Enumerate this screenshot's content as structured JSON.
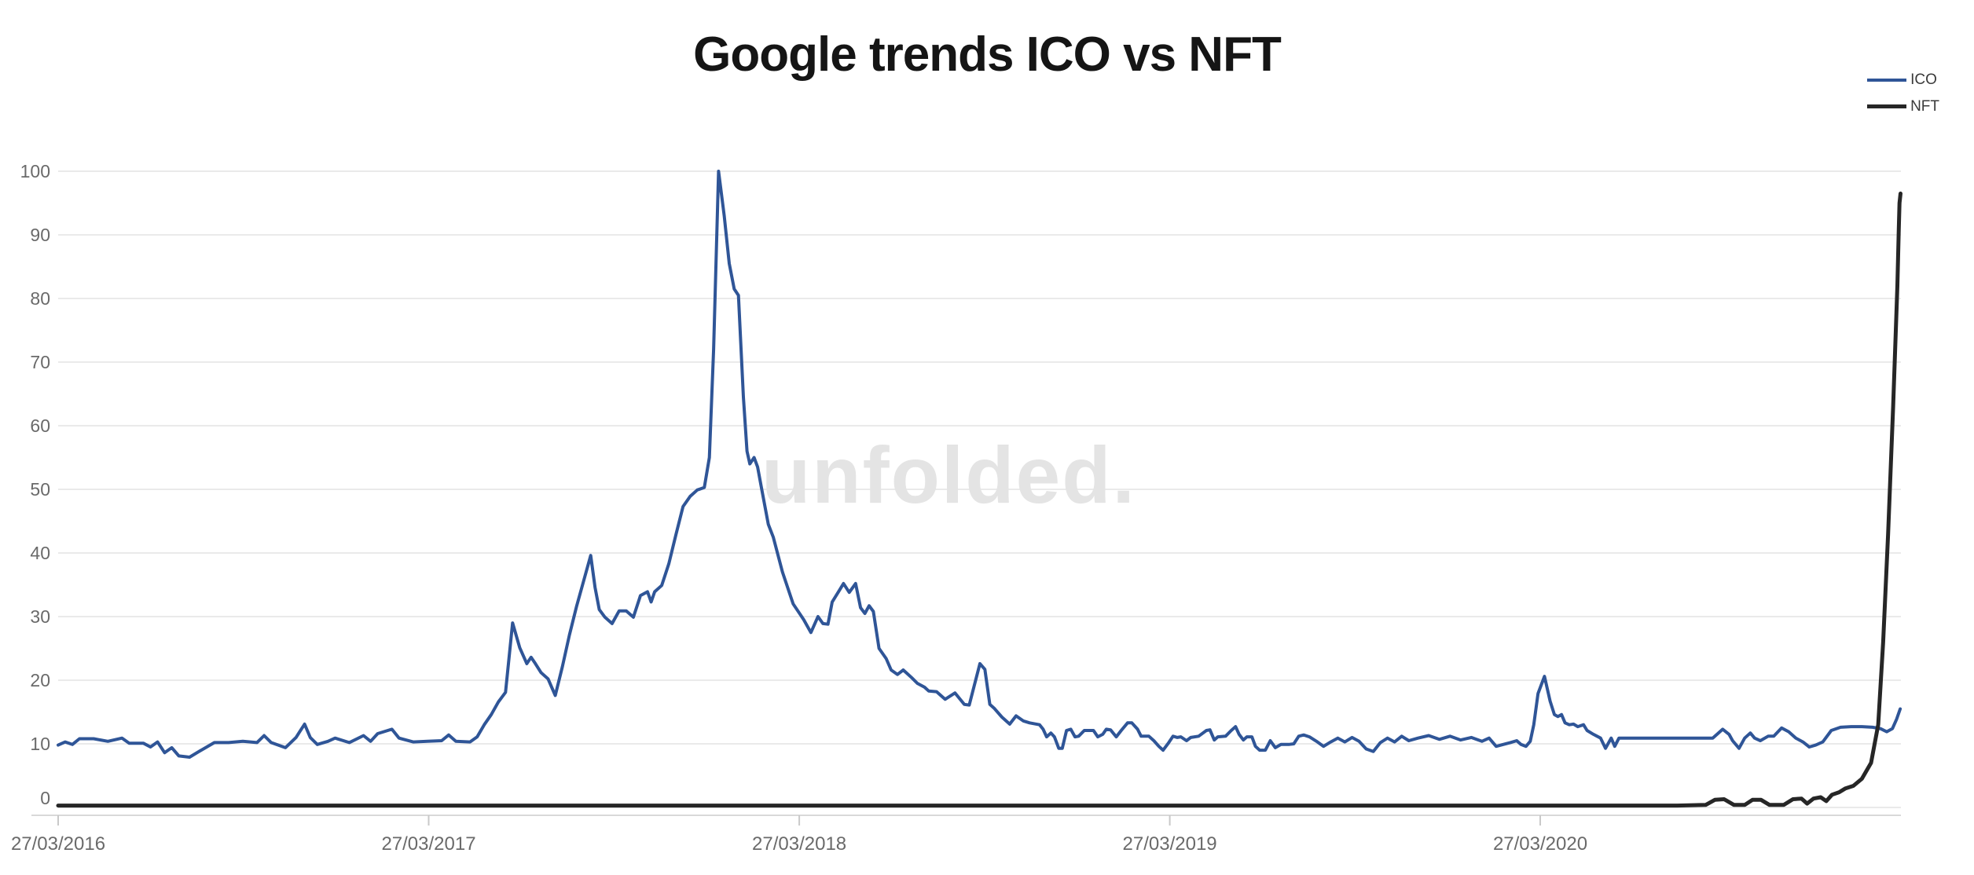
{
  "chart_data": {
    "type": "line",
    "title": "Google trends ICO vs NFT",
    "watermark": "unfolded.",
    "grid": "horizontal",
    "legend_position": "top-right",
    "x_axis": {
      "tick_labels": [
        "27/03/2016",
        "27/03/2017",
        "27/03/2018",
        "27/03/2019",
        "27/03/2020"
      ],
      "tick_weeks": [
        0,
        52.18,
        104.36,
        156.54,
        208.71
      ],
      "range_weeks": [
        0,
        259.5
      ],
      "unit": "weeks since 27/03/2016"
    },
    "y_axis": {
      "ticks": [
        0,
        10,
        20,
        30,
        40,
        50,
        60,
        70,
        80,
        90,
        100
      ],
      "range": [
        0,
        100
      ]
    },
    "colors": {
      "ico_line": "#2f5597",
      "nft_line": "#262626",
      "gridline": "#eaeaea",
      "axis_labels": "#6a6a6a",
      "title": "#151515",
      "watermark": "#e4e4e4"
    },
    "series": [
      {
        "name": "ICO",
        "color": "#2f5597",
        "points": [
          [
            0,
            9.8
          ],
          [
            1,
            10.3
          ],
          [
            2,
            9.9
          ],
          [
            3,
            10.8
          ],
          [
            5,
            10.8
          ],
          [
            7,
            10.4
          ],
          [
            9,
            10.9
          ],
          [
            10,
            10.1
          ],
          [
            12,
            10.1
          ],
          [
            13,
            9.5
          ],
          [
            14,
            10.3
          ],
          [
            15,
            8.6
          ],
          [
            16,
            9.4
          ],
          [
            17,
            8.1
          ],
          [
            18.5,
            7.9
          ],
          [
            20,
            8.9
          ],
          [
            22,
            10.2
          ],
          [
            24,
            10.2
          ],
          [
            26,
            10.4
          ],
          [
            28,
            10.2
          ],
          [
            29,
            11.3
          ],
          [
            30,
            10.2
          ],
          [
            32,
            9.4
          ],
          [
            33.5,
            11
          ],
          [
            34.7,
            13.1
          ],
          [
            35.5,
            11
          ],
          [
            36.5,
            9.9
          ],
          [
            38,
            10.4
          ],
          [
            39,
            10.9
          ],
          [
            41,
            10.2
          ],
          [
            43,
            11.3
          ],
          [
            44,
            10.4
          ],
          [
            45,
            11.6
          ],
          [
            47,
            12.3
          ],
          [
            48,
            10.9
          ],
          [
            50,
            10.3
          ],
          [
            52,
            10.4
          ],
          [
            54,
            10.5
          ],
          [
            55,
            11.4
          ],
          [
            56,
            10.4
          ],
          [
            58,
            10.3
          ],
          [
            59,
            11.1
          ],
          [
            60,
            13
          ],
          [
            61,
            14.6
          ],
          [
            62,
            16.6
          ],
          [
            63,
            18.1
          ],
          [
            64,
            29
          ],
          [
            65,
            25.1
          ],
          [
            66,
            22.6
          ],
          [
            66.6,
            23.6
          ],
          [
            67.2,
            22.6
          ],
          [
            68,
            21.2
          ],
          [
            69,
            20.2
          ],
          [
            70,
            17.6
          ],
          [
            71,
            22.1
          ],
          [
            72,
            27.1
          ],
          [
            73,
            31.6
          ],
          [
            74,
            35.6
          ],
          [
            75,
            39.6
          ],
          [
            75.6,
            34.6
          ],
          [
            76.2,
            31.1
          ],
          [
            77,
            29.9
          ],
          [
            78,
            28.9
          ],
          [
            79,
            30.9
          ],
          [
            80,
            30.9
          ],
          [
            81,
            29.9
          ],
          [
            82,
            33.3
          ],
          [
            83,
            33.9
          ],
          [
            83.5,
            32.3
          ],
          [
            84,
            33.9
          ],
          [
            85,
            34.9
          ],
          [
            86,
            38.3
          ],
          [
            87,
            42.9
          ],
          [
            88,
            47.3
          ],
          [
            89,
            48.9
          ],
          [
            90,
            49.9
          ],
          [
            91,
            50.3
          ],
          [
            91.7,
            55
          ],
          [
            92.3,
            72
          ],
          [
            93,
            100
          ],
          [
            93.8,
            93
          ],
          [
            94.5,
            85.5
          ],
          [
            95.2,
            81.5
          ],
          [
            95.8,
            80.5
          ],
          [
            96.5,
            64.5
          ],
          [
            97,
            56
          ],
          [
            97.4,
            54
          ],
          [
            98,
            55
          ],
          [
            98.5,
            53.5
          ],
          [
            99,
            50.5
          ],
          [
            100,
            44.5
          ],
          [
            100.7,
            42.5
          ],
          [
            102,
            37
          ],
          [
            103.5,
            32
          ],
          [
            105,
            29.5
          ],
          [
            106,
            27.5
          ],
          [
            107,
            30
          ],
          [
            107.7,
            28.9
          ],
          [
            108.4,
            28.8
          ],
          [
            109,
            32.3
          ],
          [
            110,
            34.1
          ],
          [
            110.6,
            35.2
          ],
          [
            111.4,
            33.8
          ],
          [
            112.3,
            35.2
          ],
          [
            113,
            31.4
          ],
          [
            113.6,
            30.5
          ],
          [
            114.2,
            31.7
          ],
          [
            114.8,
            30.8
          ],
          [
            115.6,
            25
          ],
          [
            116.6,
            23.4
          ],
          [
            117.3,
            21.6
          ],
          [
            118.2,
            20.9
          ],
          [
            119,
            21.6
          ],
          [
            119.6,
            21
          ],
          [
            120.2,
            20.4
          ],
          [
            121,
            19.5
          ],
          [
            122,
            18.9
          ],
          [
            122.6,
            18.3
          ],
          [
            123.7,
            18.2
          ],
          [
            124.9,
            17
          ],
          [
            126.3,
            18
          ],
          [
            127.6,
            16.2
          ],
          [
            128.3,
            16.1
          ],
          [
            129.8,
            22.6
          ],
          [
            130.5,
            21.7
          ],
          [
            131.2,
            16.2
          ],
          [
            131.8,
            15.6
          ],
          [
            132.9,
            14.2
          ],
          [
            134,
            13.1
          ],
          [
            134.9,
            14.4
          ],
          [
            135.9,
            13.6
          ],
          [
            136.8,
            13.3
          ],
          [
            138.2,
            13
          ],
          [
            138.7,
            12.3
          ],
          [
            139.2,
            11.1
          ],
          [
            139.8,
            11.7
          ],
          [
            140.3,
            11.1
          ],
          [
            140.9,
            9.3
          ],
          [
            141.4,
            9.3
          ],
          [
            142,
            12.1
          ],
          [
            142.6,
            12.3
          ],
          [
            143.2,
            11.1
          ],
          [
            143.7,
            11.2
          ],
          [
            144.5,
            12.1
          ],
          [
            145.8,
            12.1
          ],
          [
            146.4,
            11.1
          ],
          [
            147.1,
            11.5
          ],
          [
            147.6,
            12.3
          ],
          [
            148.2,
            12.2
          ],
          [
            149,
            11.1
          ],
          [
            149.7,
            12.1
          ],
          [
            150.6,
            13.3
          ],
          [
            151.2,
            13.3
          ],
          [
            152,
            12.3
          ],
          [
            152.5,
            11.2
          ],
          [
            153.6,
            11.2
          ],
          [
            154.3,
            10.5
          ],
          [
            155,
            9.6
          ],
          [
            155.6,
            9
          ],
          [
            156.4,
            10.2
          ],
          [
            157,
            11.2
          ],
          [
            157.6,
            11
          ],
          [
            158.1,
            11.1
          ],
          [
            158.9,
            10.5
          ],
          [
            159.5,
            11
          ],
          [
            160.6,
            11.2
          ],
          [
            161.7,
            12.1
          ],
          [
            162.2,
            12.2
          ],
          [
            162.8,
            10.6
          ],
          [
            163.3,
            11.1
          ],
          [
            164.4,
            11.2
          ],
          [
            165.2,
            12.1
          ],
          [
            165.8,
            12.7
          ],
          [
            166.3,
            11.5
          ],
          [
            166.9,
            10.6
          ],
          [
            167.4,
            11.1
          ],
          [
            168.1,
            11.1
          ],
          [
            168.6,
            9.6
          ],
          [
            169.2,
            9
          ],
          [
            170,
            9
          ],
          [
            170.7,
            10.5
          ],
          [
            171.4,
            9.4
          ],
          [
            172.2,
            9.9
          ],
          [
            173.3,
            9.9
          ],
          [
            174,
            10
          ],
          [
            174.7,
            11.2
          ],
          [
            175.4,
            11.4
          ],
          [
            176.2,
            11.1
          ],
          [
            177.2,
            10.4
          ],
          [
            178.2,
            9.6
          ],
          [
            179.2,
            10.3
          ],
          [
            180.2,
            10.9
          ],
          [
            181.2,
            10.3
          ],
          [
            182.2,
            11
          ],
          [
            183.2,
            10.4
          ],
          [
            184.2,
            9.2
          ],
          [
            185.2,
            8.8
          ],
          [
            186.2,
            10.2
          ],
          [
            187.2,
            10.9
          ],
          [
            188.2,
            10.3
          ],
          [
            189.2,
            11.2
          ],
          [
            190.2,
            10.5
          ],
          [
            191.5,
            10.9
          ],
          [
            193,
            11.3
          ],
          [
            194.5,
            10.7
          ],
          [
            196,
            11.2
          ],
          [
            197.5,
            10.6
          ],
          [
            199,
            11
          ],
          [
            200.5,
            10.4
          ],
          [
            201.5,
            10.9
          ],
          [
            202.5,
            9.6
          ],
          [
            203.5,
            9.9
          ],
          [
            204.5,
            10.2
          ],
          [
            205.4,
            10.5
          ],
          [
            206,
            9.9
          ],
          [
            206.7,
            9.6
          ],
          [
            207.3,
            10.4
          ],
          [
            207.8,
            13
          ],
          [
            208.4,
            17.9
          ],
          [
            209.3,
            20.6
          ],
          [
            210.1,
            16.7
          ],
          [
            210.7,
            14.6
          ],
          [
            211.2,
            14.3
          ],
          [
            211.7,
            14.6
          ],
          [
            212.2,
            13.3
          ],
          [
            212.8,
            13
          ],
          [
            213.4,
            13.1
          ],
          [
            214,
            12.7
          ],
          [
            214.8,
            13
          ],
          [
            215.3,
            12.1
          ],
          [
            216.2,
            11.5
          ],
          [
            217.2,
            10.9
          ],
          [
            217.9,
            9.3
          ],
          [
            218.7,
            10.9
          ],
          [
            219.2,
            9.6
          ],
          [
            219.8,
            10.9
          ],
          [
            220.5,
            10.9
          ],
          [
            222,
            10.9
          ],
          [
            224,
            10.9
          ],
          [
            226,
            10.9
          ],
          [
            228,
            10.9
          ],
          [
            230,
            10.9
          ],
          [
            232,
            10.9
          ],
          [
            233,
            10.9
          ],
          [
            233.8,
            11.7
          ],
          [
            234.4,
            12.3
          ],
          [
            235.3,
            11.5
          ],
          [
            235.8,
            10.5
          ],
          [
            236.7,
            9.3
          ],
          [
            237.5,
            10.9
          ],
          [
            238.3,
            11.7
          ],
          [
            238.9,
            10.9
          ],
          [
            239.7,
            10.5
          ],
          [
            240.8,
            11.2
          ],
          [
            241.6,
            11.2
          ],
          [
            242.7,
            12.5
          ],
          [
            243.7,
            11.9
          ],
          [
            244.7,
            10.9
          ],
          [
            245.7,
            10.3
          ],
          [
            246.6,
            9.5
          ],
          [
            247.5,
            9.8
          ],
          [
            248.5,
            10.3
          ],
          [
            249.7,
            12.1
          ],
          [
            251,
            12.6
          ],
          [
            252.5,
            12.7
          ],
          [
            254,
            12.7
          ],
          [
            255.5,
            12.6
          ],
          [
            256.6,
            12.4
          ],
          [
            257.5,
            11.9
          ],
          [
            258.3,
            12.4
          ],
          [
            258.9,
            13.9
          ],
          [
            259.4,
            15.5
          ]
        ]
      },
      {
        "name": "NFT",
        "color": "#262626",
        "points": [
          [
            0,
            0.3
          ],
          [
            30,
            0.3
          ],
          [
            60,
            0.3
          ],
          [
            90,
            0.3
          ],
          [
            120,
            0.3
          ],
          [
            150,
            0.3
          ],
          [
            180,
            0.3
          ],
          [
            200,
            0.3
          ],
          [
            210,
            0.3
          ],
          [
            220,
            0.3
          ],
          [
            228,
            0.3
          ],
          [
            232,
            0.4
          ],
          [
            233.3,
            1.2
          ],
          [
            234.6,
            1.3
          ],
          [
            236,
            0.4
          ],
          [
            237.5,
            0.4
          ],
          [
            238.6,
            1.2
          ],
          [
            239.8,
            1.2
          ],
          [
            241,
            0.4
          ],
          [
            243,
            0.4
          ],
          [
            244.3,
            1.3
          ],
          [
            245.5,
            1.4
          ],
          [
            246.3,
            0.6
          ],
          [
            247.2,
            1.4
          ],
          [
            248.2,
            1.6
          ],
          [
            249,
            1
          ],
          [
            249.8,
            2
          ],
          [
            250.8,
            2.4
          ],
          [
            251.7,
            3
          ],
          [
            252.8,
            3.4
          ],
          [
            254,
            4.5
          ],
          [
            255.3,
            7
          ],
          [
            256.3,
            13
          ],
          [
            257,
            26
          ],
          [
            257.7,
            43
          ],
          [
            258.4,
            63
          ],
          [
            259,
            82
          ],
          [
            259.2,
            91
          ],
          [
            259.3,
            95
          ],
          [
            259.45,
            96.5
          ]
        ]
      }
    ]
  }
}
